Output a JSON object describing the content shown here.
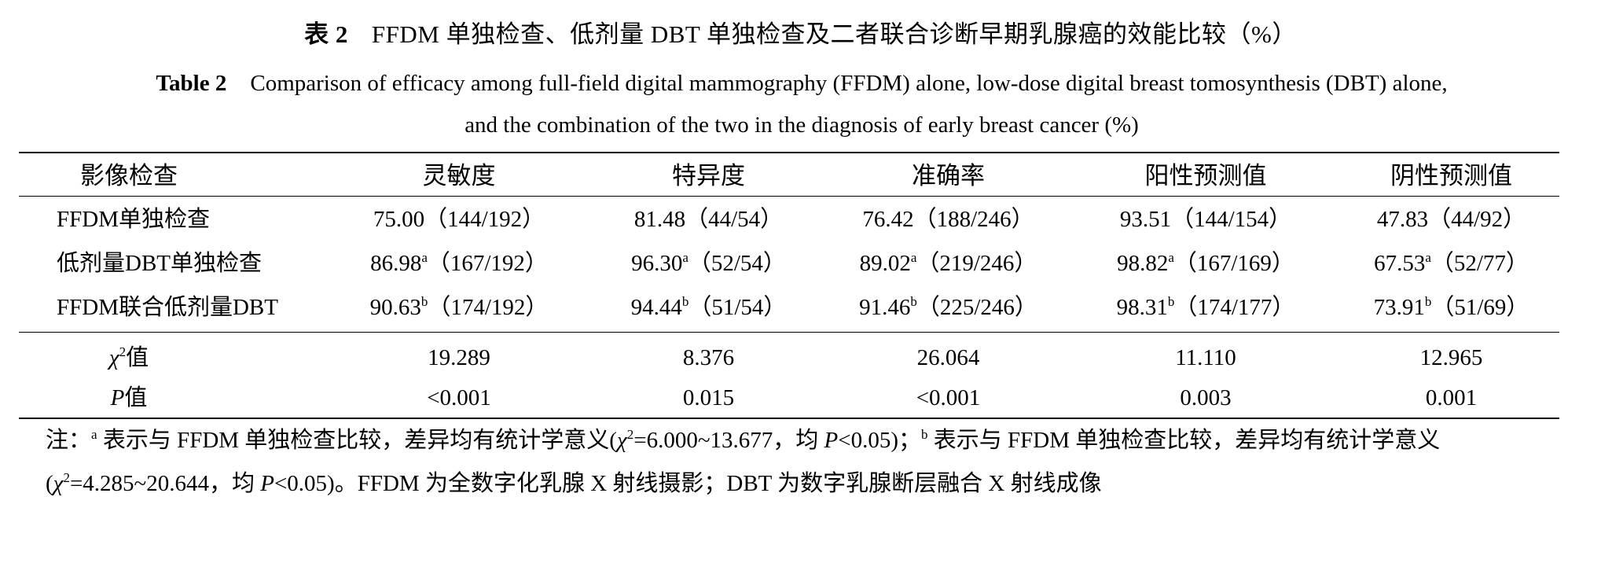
{
  "title": {
    "cn_label": "表 2",
    "cn_text": "FFDM 单独检查、低剂量 DBT 单独检查及二者联合诊断早期乳腺癌的效能比较（%）",
    "en_label": "Table 2",
    "en_line1": "Comparison of efficacy among full-field digital mammography (FFDM) alone, low-dose digital breast tomosynthesis (DBT) alone,",
    "en_line2": "and the combination of the two in the diagnosis of early breast cancer (%)"
  },
  "table": {
    "headers": [
      "影像检查",
      "灵敏度",
      "特异度",
      "准确率",
      "阳性预测值",
      "阴性预测值"
    ],
    "rows": [
      {
        "label": "FFDM单独检查",
        "cells": [
          {
            "value": "75.00",
            "sup": "",
            "ratio": "（144/192）"
          },
          {
            "value": "81.48",
            "sup": "",
            "ratio": "（44/54）"
          },
          {
            "value": "76.42",
            "sup": "",
            "ratio": "（188/246）"
          },
          {
            "value": "93.51",
            "sup": "",
            "ratio": "（144/154）"
          },
          {
            "value": "47.83",
            "sup": "",
            "ratio": "（44/92）"
          }
        ]
      },
      {
        "label": "低剂量DBT单独检查",
        "cells": [
          {
            "value": "86.98",
            "sup": "a",
            "ratio": "（167/192）"
          },
          {
            "value": "96.30",
            "sup": "a",
            "ratio": "（52/54）"
          },
          {
            "value": "89.02",
            "sup": "a",
            "ratio": "（219/246）"
          },
          {
            "value": "98.82",
            "sup": "a",
            "ratio": "（167/169）"
          },
          {
            "value": "67.53",
            "sup": "a",
            "ratio": "（52/77）"
          }
        ]
      },
      {
        "label": "FFDM联合低剂量DBT",
        "cells": [
          {
            "value": "90.63",
            "sup": "b",
            "ratio": "（174/192）"
          },
          {
            "value": "94.44",
            "sup": "b",
            "ratio": "（51/54）"
          },
          {
            "value": "91.46",
            "sup": "b",
            "ratio": "（225/246）"
          },
          {
            "value": "98.31",
            "sup": "b",
            "ratio": "（174/177）"
          },
          {
            "value": "73.91",
            "sup": "b",
            "ratio": "（51/69）"
          }
        ]
      }
    ],
    "chi2_row": {
      "symbol": "χ",
      "exp": "2",
      "suffix": "值",
      "values": [
        "19.289",
        "8.376",
        "26.064",
        "11.110",
        "12.965"
      ]
    },
    "p_row": {
      "symbol": "P",
      "suffix": "值",
      "values": [
        "<0.001",
        "0.015",
        "<0.001",
        "0.003",
        "0.001"
      ]
    }
  },
  "note": {
    "prefix": "注：",
    "sup_a": "a",
    "part1": " 表示与 FFDM 单独检查比较，差异均有统计学意义(",
    "chi": "χ",
    "exp": "2",
    "part2": "=6.000~13.677，均 ",
    "p": "P",
    "part3": "<0.05)；",
    "sup_b": "b",
    "part4": " 表示与 FFDM 单独检查比较，差异均有统计学意义(",
    "chi_b": "χ",
    "exp_b": "2",
    "part5": "=4.285~20.644，均 ",
    "p_b": "P",
    "part6": "<0.05)。FFDM 为全数字化乳腺 X 射线摄影；DBT 为数字乳腺断层融合 X 射线成像"
  }
}
